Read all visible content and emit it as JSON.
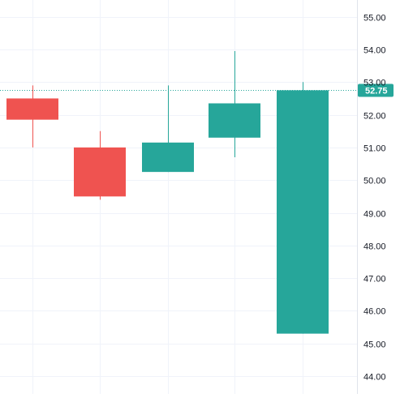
{
  "chart_data": {
    "type": "candlestick",
    "title": "",
    "xlabel": "",
    "ylabel": "",
    "ylim": [
      43.6,
      55.4
    ],
    "y_ticks": [
      "44.00",
      "45.00",
      "46.00",
      "47.00",
      "48.00",
      "49.00",
      "50.00",
      "51.00",
      "52.00",
      "53.00",
      "54.00",
      "55.00"
    ],
    "grid": true,
    "last_price": {
      "value": 52.75,
      "label": "52.75"
    },
    "candles": [
      {
        "open": 52.5,
        "high": 52.9,
        "low": 51.0,
        "close": 51.85
      },
      {
        "open": 51.0,
        "high": 51.5,
        "low": 49.4,
        "close": 49.5
      },
      {
        "open": 50.25,
        "high": 52.9,
        "low": 50.25,
        "close": 51.15
      },
      {
        "open": 51.3,
        "high": 53.95,
        "low": 50.7,
        "close": 52.35
      },
      {
        "open": 45.3,
        "high": 53.0,
        "low": 45.3,
        "close": 52.75
      }
    ],
    "colors": {
      "up": "#26a69a",
      "down": "#ef5350",
      "grid": "#f0f3fa",
      "axis_text": "#131722",
      "price_line": "#26a69a",
      "price_label_bg": "#26a69a",
      "price_label_text": "#ffffff"
    }
  }
}
